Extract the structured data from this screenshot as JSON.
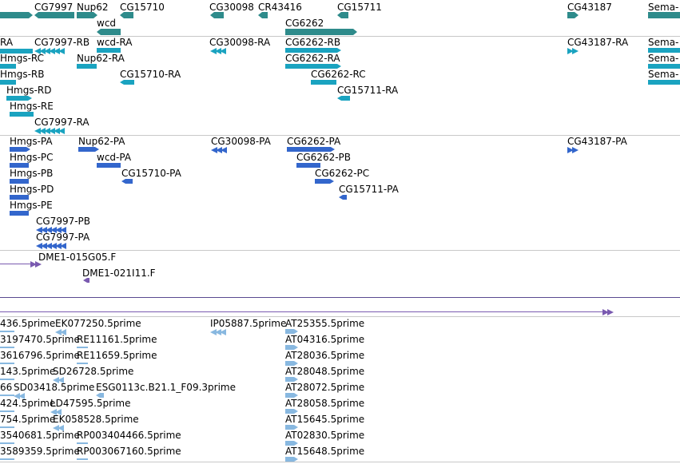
{
  "colors": {
    "gene": "#2e8b8b",
    "mrna": "#1aa3c0",
    "cds": "#3366cc",
    "clone": "#7a5ab0",
    "est": "#88b8e0",
    "separator": "#c8c8c8"
  },
  "tracks": {
    "genes": {
      "labels": [
        "CG7997",
        "Nup62",
        "CG15710",
        "CG30098",
        "CR43416",
        "CG15711",
        "CG43187",
        "Sema-",
        "wcd",
        "CG6262"
      ]
    },
    "transcripts": {
      "labels": [
        "RA",
        "CG7997-RB",
        "wcd-RA",
        "CG30098-RA",
        "CG6262-RB",
        "CG43187-RA",
        "Sema-",
        "Hmgs-RC",
        "Nup62-RA",
        "CG6262-RA",
        "Sema-",
        "Hmgs-RB",
        "CG15710-RA",
        "CG6262-RC",
        "Sema-",
        "Hmgs-RD",
        "CG15711-RA",
        "Hmgs-RE",
        "CG7997-RA"
      ]
    },
    "proteins": {
      "labels": [
        "Hmgs-PA",
        "Nup62-PA",
        "CG30098-PA",
        "CG6262-PA",
        "CG43187-PA",
        "Hmgs-PC",
        "wcd-PA",
        "CG6262-PB",
        "Hmgs-PB",
        "CG15710-PA",
        "CG6262-PC",
        "Hmgs-PD",
        "CG15711-PA",
        "Hmgs-PE",
        "CG7997-PB",
        "CG7997-PA"
      ]
    },
    "clones": {
      "labels": [
        "DME1-015G05.F",
        "DME1-021I11.F"
      ]
    },
    "ests": {
      "labels": [
        "436.5prime",
        "EK077250.5prime",
        "IP05887.5prime",
        "AT25355.5prime",
        "3197470.5prime",
        "RE11161.5prime",
        "AT04316.5prime",
        "3616796.5prime",
        "RE11659.5prime",
        "AT28036.5prime",
        "143.5prime",
        "SD26728.5prime",
        "AT28048.5prime",
        "66",
        "SD03418.5prime",
        "ESG0113c.B21.1_F09.3prime",
        "AT28072.5prime",
        "424.5prime",
        "LD47595.5prime",
        "AT28058.5prime",
        "754.5prime",
        "EK058528.5prime",
        "AT15645.5prime",
        "3540681.5prime",
        "RP003404466.5prime",
        "AT02830.5prime",
        "3589359.5prime",
        "RP003067160.5prime",
        "AT15648.5prime"
      ]
    }
  }
}
